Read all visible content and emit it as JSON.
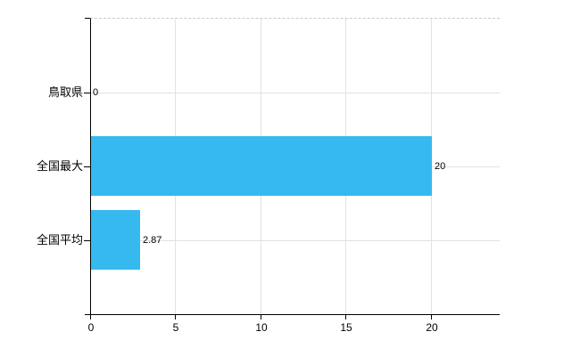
{
  "page": {
    "background": "#ffffff"
  },
  "chart_data": {
    "type": "bar",
    "orientation": "horizontal",
    "title": "",
    "xlabel": "",
    "ylabel": "",
    "categories": [
      "鳥取県",
      "全国最大",
      "全国平均"
    ],
    "values": [
      0,
      20,
      2.87
    ],
    "value_labels": [
      "0",
      "20",
      "2.87"
    ],
    "x_tick_values": [
      0,
      5,
      10,
      15,
      20
    ],
    "x_tick_labels": [
      "0",
      "5",
      "10",
      "15",
      "20"
    ],
    "xlim": [
      0,
      24
    ],
    "grid": true,
    "legend_position": "none",
    "colors": {
      "bar": "#36b9ef",
      "axis": "#000000",
      "text": "#000000",
      "vertical_gridline": "#e2e2e2",
      "horizontal_gridline": "#dde4dd",
      "top_border": "#c9c9c9",
      "background": "#ffffff"
    }
  }
}
